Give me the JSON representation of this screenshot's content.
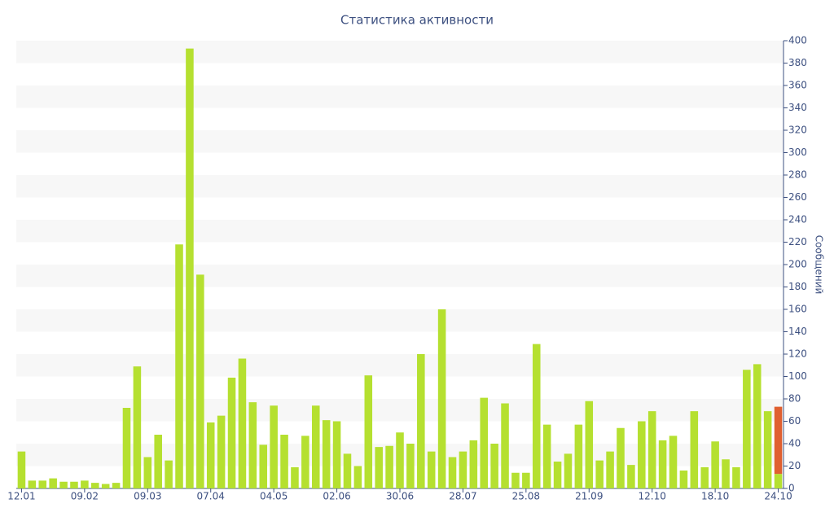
{
  "chart_data": {
    "type": "bar",
    "title": "Статистика активности",
    "y_label": "Сообщений",
    "categories": [
      "12.01",
      null,
      null,
      null,
      null,
      null,
      "09.02",
      null,
      null,
      null,
      null,
      null,
      "09.03",
      null,
      null,
      null,
      null,
      null,
      "07.04",
      null,
      null,
      null,
      null,
      null,
      "04.05",
      null,
      null,
      null,
      null,
      null,
      "02.06",
      null,
      null,
      null,
      null,
      null,
      "30.06",
      null,
      null,
      null,
      null,
      null,
      "28.07",
      null,
      null,
      null,
      null,
      null,
      "25.08",
      null,
      null,
      null,
      null,
      null,
      "21.09",
      null,
      null,
      null,
      null,
      null,
      "12.10",
      null,
      null,
      null,
      null,
      null,
      "18.10",
      null,
      null,
      null,
      null,
      null,
      "24.10"
    ],
    "series": [
      {
        "color": "#b5e030",
        "values": [
          33,
          7,
          7,
          9,
          6,
          6,
          7,
          5,
          4,
          5,
          72,
          109,
          28,
          48,
          25,
          218,
          393,
          191,
          59,
          65,
          99,
          116,
          77,
          39,
          74,
          48,
          19,
          47,
          74,
          61,
          60,
          31,
          20,
          101,
          37,
          38,
          50,
          40,
          120,
          33,
          160,
          28,
          33,
          43,
          81,
          40,
          76,
          14,
          14,
          129,
          57,
          24,
          31,
          57,
          78,
          25,
          33,
          54,
          21,
          60,
          69,
          43,
          47,
          16,
          69,
          19,
          42,
          26,
          19,
          106,
          111,
          69,
          13
        ]
      },
      {
        "color": "#e06030",
        "values": [
          null,
          null,
          null,
          null,
          null,
          null,
          null,
          null,
          null,
          null,
          null,
          null,
          null,
          null,
          null,
          null,
          null,
          null,
          null,
          null,
          null,
          null,
          null,
          null,
          null,
          null,
          null,
          null,
          null,
          null,
          null,
          null,
          null,
          null,
          null,
          null,
          null,
          null,
          null,
          null,
          null,
          null,
          null,
          null,
          null,
          null,
          null,
          null,
          null,
          null,
          null,
          null,
          null,
          null,
          null,
          null,
          null,
          null,
          null,
          null,
          null,
          null,
          null,
          null,
          null,
          null,
          null,
          null,
          null,
          null,
          null,
          null,
          60
        ]
      }
    ],
    "stacked": true,
    "y_axis_side": "right",
    "ylim": [
      0,
      400
    ],
    "yticks": [
      0,
      20,
      40,
      60,
      80,
      100,
      120,
      140,
      160,
      180,
      200,
      220,
      240,
      260,
      280,
      300,
      320,
      340,
      360,
      380,
      400
    ],
    "grid": "bands"
  }
}
